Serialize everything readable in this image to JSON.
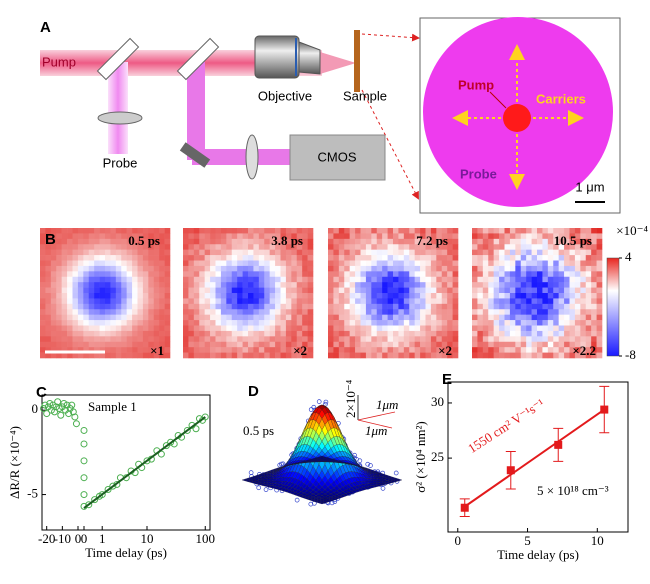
{
  "panel_a": {
    "label": "A",
    "pump": "Pump",
    "probe": "Probe",
    "objective": "Objective",
    "sample": "Sample",
    "cmos": "CMOS",
    "inset": {
      "pump": "Pump",
      "carriers": "Carriers",
      "probe": "Probe",
      "scale_bar": "1 μm"
    }
  },
  "panel_b": {
    "label": "B",
    "frames": [
      {
        "time": "0.5 ps",
        "gain": "×1"
      },
      {
        "time": "3.8 ps",
        "gain": "×2"
      },
      {
        "time": "7.2 ps",
        "gain": "×2"
      },
      {
        "time": "10.5 ps",
        "gain": "×2.2"
      }
    ],
    "colorbar": {
      "label": "×10⁻⁴",
      "lim": [
        -8,
        4
      ],
      "ticks": [
        4,
        -8
      ]
    }
  },
  "panel_d": {
    "label": "D",
    "time": "0.5 ps",
    "z_scale": "2×10⁻⁴",
    "x_scale": "1μm",
    "y_scale": "1μm"
  },
  "chart_data": [
    {
      "type": "scatter",
      "panel": "C",
      "title": "Sample 1",
      "x_label": "Time delay (ps)",
      "y_label": "ΔR/R (×10⁻⁴)",
      "x_segments": [
        {
          "scale": "linear",
          "xlim": [
            -23,
            0
          ],
          "xticks": [
            -20,
            -10,
            0
          ]
        },
        {
          "scale": "log1p",
          "xlim": [
            0,
            120
          ],
          "xticks": [
            0,
            1,
            10,
            100
          ]
        }
      ],
      "ylim": [
        -7.1,
        0.9
      ],
      "yticks": [
        0,
        -5
      ],
      "series": [
        {
          "type": "scatter",
          "color": "#4caf50",
          "x": [
            -22,
            -21,
            -20,
            -19,
            -18,
            -17,
            -16,
            -15,
            -14,
            -13,
            -12,
            -11,
            -10,
            -9,
            -8,
            -7,
            -6,
            -5,
            -4,
            -3,
            -2,
            -1,
            0,
            0,
            0,
            0,
            0,
            0,
            0.2,
            0.5,
            0.8,
            1,
            1.5,
            2,
            2.5,
            3,
            4,
            5,
            6,
            7,
            8,
            10,
            12,
            15,
            18,
            22,
            26,
            30,
            35,
            40,
            50,
            60,
            70,
            80,
            90,
            100
          ],
          "values": [
            0.1,
            0.3,
            -0.2,
            0.2,
            0.4,
            0,
            0.3,
            -0.1,
            0.2,
            0.5,
            0.1,
            -0.3,
            0.2,
            0.4,
            0,
            0.3,
            -0.2,
            0.1,
            0.3,
            -0.1,
            -0.4,
            -0.8,
            -1.2,
            -2,
            -3,
            -4,
            -5,
            -5.7,
            -5.6,
            -5.3,
            -5.1,
            -5,
            -4.7,
            -4.5,
            -4.4,
            -4,
            -4,
            -3.6,
            -3.7,
            -3.2,
            -3.4,
            -3,
            -2.9,
            -2.4,
            -2.6,
            -2.1,
            -1.9,
            -2,
            -1.5,
            -1.6,
            -1.2,
            -0.9,
            -1.1,
            -0.5,
            -0.6,
            -0.4
          ]
        },
        {
          "type": "line",
          "color": "#1b5e20",
          "x": [
            0,
            100
          ],
          "values": [
            -5.8,
            -0.4
          ]
        }
      ]
    },
    {
      "type": "scatter",
      "panel": "E",
      "x_label": "Time delay (ps)",
      "y_label": "σ² (×10⁴ nm²)",
      "annotations": [
        "1550 cm² V⁻¹s⁻¹",
        "5 × 10¹⁸ cm⁻³"
      ],
      "x_segments": [
        {
          "scale": "linear",
          "xlim": [
            -0.7,
            12.2
          ],
          "xticks": [
            0,
            5,
            10
          ]
        }
      ],
      "ylim": [
        18.3,
        31.9
      ],
      "yticks": [
        25,
        30
      ],
      "series": [
        {
          "type": "scatter",
          "color": "#e31a1c",
          "x": [
            0.5,
            3.8,
            7.2,
            10.5
          ],
          "values": [
            20.5,
            23.9,
            26.2,
            29.4
          ],
          "errors": [
            0.8,
            1.7,
            1.5,
            2.1
          ]
        },
        {
          "type": "line",
          "color": "#e31a1c",
          "x": [
            0.5,
            10.5
          ],
          "values": [
            20.6,
            29.4
          ]
        }
      ]
    }
  ]
}
